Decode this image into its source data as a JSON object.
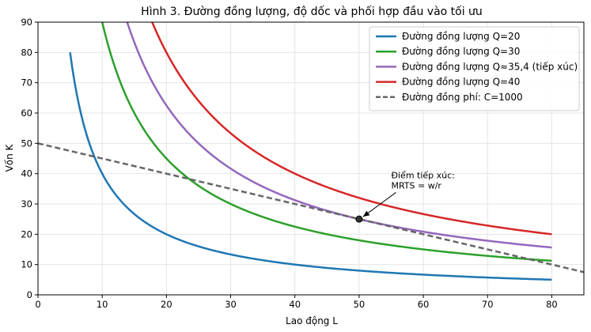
{
  "chart_data": {
    "type": "line",
    "title": "Hình 3. Đường đồng lượng, độ dốc và phối hợp đầu vào tối ưu",
    "xlabel": "Lao động L",
    "ylabel": "Vốn K",
    "xlim": [
      0,
      85
    ],
    "ylim": [
      0,
      90
    ],
    "xticks": [
      0,
      10,
      20,
      30,
      40,
      50,
      60,
      70,
      80
    ],
    "yticks": [
      0,
      10,
      20,
      30,
      40,
      50,
      60,
      70,
      80,
      90
    ],
    "grid": true,
    "legend_position": "top-right",
    "x_range": [
      5,
      80
    ],
    "series": [
      {
        "name": "Đường đồng lượng Q=20",
        "color": "#1f77b4",
        "style": "solid",
        "k": 400
      },
      {
        "name": "Đường đồng lượng Q=30",
        "color": "#2ca02c",
        "style": "solid",
        "k": 900
      },
      {
        "name": "Đường đồng lượng Q≈35,4 (tiếp xúc)",
        "color": "#9467bd",
        "style": "solid",
        "k": 1250
      },
      {
        "name": "Đường đồng lượng Q=40",
        "color": "#d62728",
        "style": "solid",
        "k": 1600
      },
      {
        "name": "Đường đồng phí: C=1000",
        "color": "#666666",
        "style": "dashed",
        "line": {
          "x0": 0,
          "y0": 50,
          "x1": 85,
          "y1": 7.5
        }
      }
    ],
    "tangent_point": {
      "x": 50,
      "y": 25
    },
    "annotation": {
      "lines": [
        "Điểm tiếp xúc:",
        "MRTS = w/r"
      ],
      "text_anchor_x": 55,
      "text_anchor_y": 38.5
    }
  }
}
